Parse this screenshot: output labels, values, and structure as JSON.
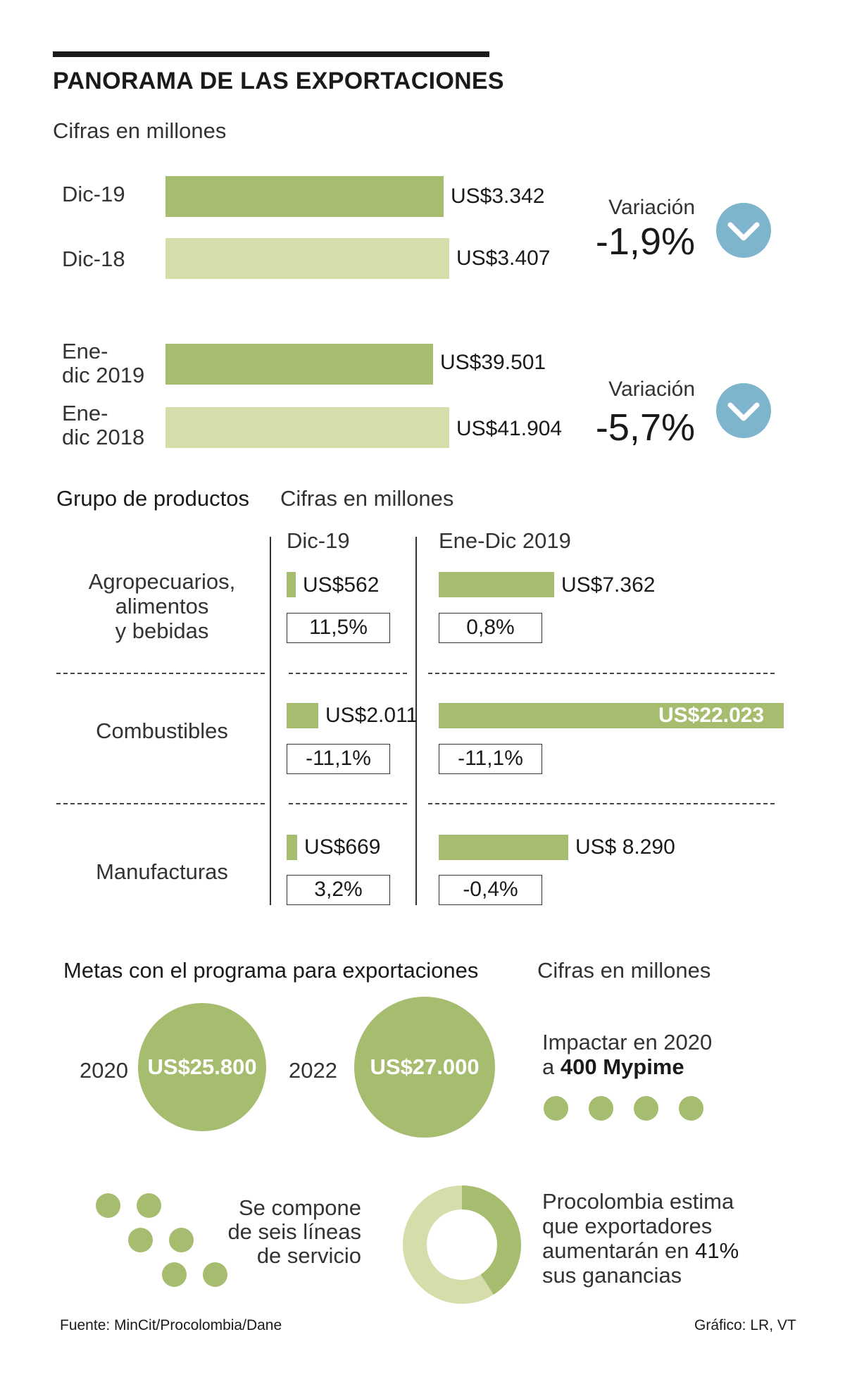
{
  "title": "PANORAMA DE LAS EXPORTACIONES",
  "units_label": "Cifras en millones",
  "colors": {
    "bar_dark": "#a6bc6e",
    "bar_light": "#d5deaa",
    "down_circle": "#7fb5cc"
  },
  "chart_data": [
    {
      "type": "bar",
      "title": "Diciembre",
      "categories": [
        "Dic-19",
        "Dic-18"
      ],
      "values": [
        3342,
        3407
      ],
      "value_labels": [
        "US$3.342",
        "US$3.407"
      ],
      "variation_label": "Variación",
      "variation": "-1,9%",
      "variation_icon": "chevron-down-icon"
    },
    {
      "type": "bar",
      "title": "Enero-diciembre",
      "categories": [
        "Ene-dic 2019",
        "Ene-dic 2018"
      ],
      "category_lines": [
        [
          "Ene-",
          "dic 2019"
        ],
        [
          "Ene-",
          "dic 2018"
        ]
      ],
      "values": [
        39501,
        41904
      ],
      "value_labels": [
        "US$39.501",
        "US$41.904"
      ],
      "variation_label": "Variación",
      "variation": "-5,7%",
      "variation_icon": "chevron-down-icon"
    },
    {
      "type": "bar",
      "title": "Grupo de productos",
      "units_label": "Cifras en millones",
      "columns": [
        "Dic-19",
        "Ene-Dic 2019"
      ],
      "groups": [
        {
          "name": "Agropecuarios, alimentos y bebidas",
          "name_lines": [
            "Agropecuarios,",
            "alimentos",
            "y bebidas"
          ],
          "dic19": {
            "value": 562,
            "label": "US$562",
            "pct": "11,5%"
          },
          "year": {
            "value": 7362,
            "label": "US$7.362",
            "pct": "0,8%"
          }
        },
        {
          "name": "Combustibles",
          "name_lines": [
            "Combustibles"
          ],
          "dic19": {
            "value": 2011,
            "label": "US$2.011",
            "pct": "-11,1%"
          },
          "year": {
            "value": 22023,
            "label": "US$22.023",
            "pct": "-11,1%"
          }
        },
        {
          "name": "Manufacturas",
          "name_lines": [
            "Manufacturas"
          ],
          "dic19": {
            "value": 669,
            "label": "US$669",
            "pct": "3,2%"
          },
          "year": {
            "value": 8290,
            "label": "US$ 8.290",
            "pct": "-0,4%"
          }
        }
      ]
    }
  ],
  "metas": {
    "title": "Metas con el programa para exportaciones",
    "units_label": "Cifras en millones",
    "goals": [
      {
        "year": "2020",
        "value": 25800,
        "label": "US$25.800"
      },
      {
        "year": "2022",
        "value": 27000,
        "label": "US$27.000"
      }
    ],
    "mypime": {
      "line1": "Impactar en 2020",
      "prefix": "a ",
      "highlight": "400 Mypime"
    },
    "service_lines": [
      "Se compone",
      "de seis líneas",
      "de servicio"
    ],
    "service_count": 6,
    "procolombia": {
      "lines": [
        "Procolombia estima",
        "que exportadores",
        "aumentarán en "
      ],
      "highlight": "41%",
      "last_line": "sus ganancias",
      "share": 0.41
    }
  },
  "source": "Fuente: MinCit/Procolombia/Dane",
  "credit": "Gráfico: LR, VT"
}
